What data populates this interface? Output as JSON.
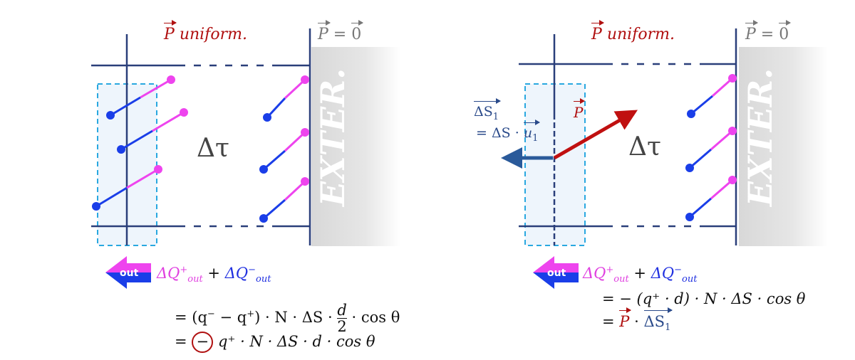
{
  "left_panel": {
    "polarization_label": "uniform.",
    "polarization_symbol": "P",
    "exterior_symbol": "P",
    "exterior_zero": "0",
    "volume_label": "Δτ",
    "exterior_label": "EXTER.",
    "out_badge": "out",
    "charge_sum": {
      "plus": "ΔQ",
      "plus_sup": "+",
      "plus_sub": "out",
      "op": "+",
      "minus": "ΔQ",
      "minus_sup": "−",
      "minus_sub": "out"
    },
    "line1": {
      "prefix": "= (q",
      "mid": " − q",
      "after": ") · N · ΔS ·",
      "frac_num": "d",
      "frac_den": "2",
      "suffix": "· cos θ"
    },
    "line2": {
      "prefix": "=",
      "circled": "−",
      "rest": "q⁺ · N · ΔS · d · cos θ"
    }
  },
  "right_panel": {
    "polarization_label": "uniform.",
    "polarization_symbol": "P",
    "exterior_symbol": "P",
    "exterior_zero": "0",
    "volume_label": "Δτ",
    "exterior_label": "EXTER.",
    "arrow_P_label": "P",
    "dS_label": "ΔS",
    "dS_sub": "1",
    "dS_eq": "= ΔS ·",
    "u_label": "u",
    "u_sub": "1",
    "out_badge": "out",
    "charge_sum": {
      "plus": "ΔQ",
      "plus_sup": "+",
      "plus_sub": "out",
      "op": "+",
      "minus": "ΔQ",
      "minus_sup": "−",
      "minus_sub": "out"
    },
    "line1": "= −  (q⁺ · d) · N · ΔS · cos θ",
    "line2": {
      "prefix": "=",
      "P": "P",
      "dot": "·",
      "dS": "ΔS",
      "dS_sub": "1"
    }
  },
  "colors": {
    "positive": "#ee44ee",
    "negative": "#1a3ee8",
    "polarization": "#b01010",
    "surface": "#2a4a8a",
    "frame": "#2a3f7a",
    "dashed_box": "#29a8e0"
  }
}
